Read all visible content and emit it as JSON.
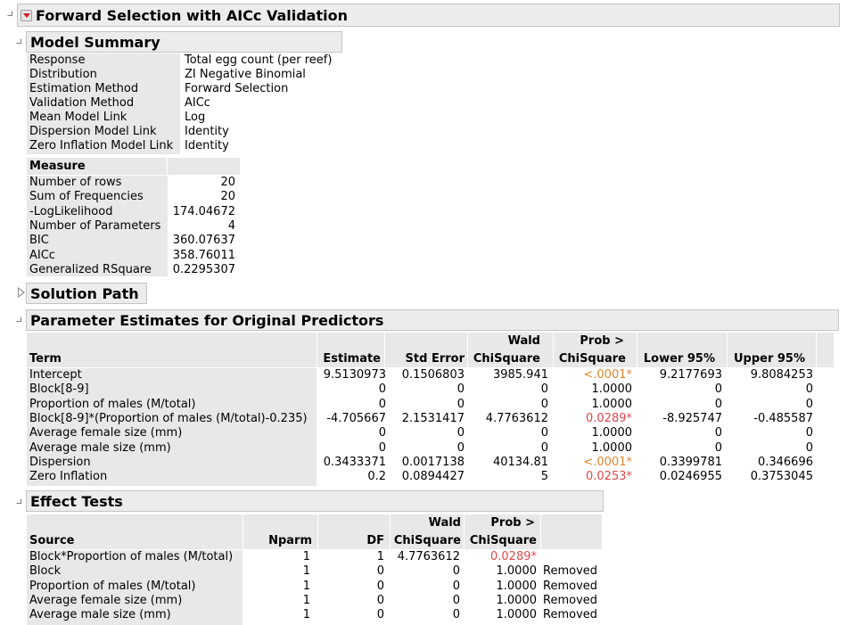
{
  "report": {
    "title": "Forward Selection with AICc Validation"
  },
  "model_summary": {
    "title": "Model Summary",
    "rows": [
      {
        "label": "Response",
        "value": "Total egg count (per reef)"
      },
      {
        "label": "Distribution",
        "value": "ZI Negative Binomial"
      },
      {
        "label": "Estimation Method",
        "value": "Forward Selection"
      },
      {
        "label": "Validation Method",
        "value": "AICc"
      },
      {
        "label": "Mean Model Link",
        "value": "Log"
      },
      {
        "label": "Dispersion Model Link",
        "value": "Identity"
      },
      {
        "label": "Zero Inflation Model Link",
        "value": "Identity"
      }
    ],
    "measure_header": "Measure",
    "measures": [
      {
        "label": "Number of rows",
        "value": "20"
      },
      {
        "label": "Sum of Frequencies",
        "value": "20"
      },
      {
        "label": "-LogLikelihood",
        "value": "174.04672"
      },
      {
        "label": "Number of Parameters",
        "value": "4"
      },
      {
        "label": "BIC",
        "value": "360.07637"
      },
      {
        "label": "AICc",
        "value": "358.76011"
      },
      {
        "label": "Generalized RSquare",
        "value": "0.2295307"
      }
    ]
  },
  "solution_path": {
    "title": "Solution Path"
  },
  "parameter_estimates": {
    "title": "Parameter Estimates for Original Predictors",
    "headers": {
      "term": "Term",
      "estimate": "Estimate",
      "std_error": "Std Error",
      "wald_line1": "Wald",
      "wald_line2": "ChiSquare",
      "prob_line1": "Prob >",
      "prob_line2": "ChiSquare",
      "lower": "Lower 95%",
      "upper": "Upper 95%"
    },
    "rows": [
      {
        "term": "Intercept",
        "estimate": "9.5130973",
        "std_error": "0.1506803",
        "wald": "3985.941",
        "prob": "<.0001*",
        "prob_color": "orange",
        "lower": "9.2177693",
        "upper": "9.8084253"
      },
      {
        "term": "Block[8-9]",
        "estimate": "0",
        "std_error": "0",
        "wald": "0",
        "prob": "1.0000",
        "prob_color": "",
        "lower": "0",
        "upper": "0"
      },
      {
        "term": "Proportion of males (M/total)",
        "estimate": "0",
        "std_error": "0",
        "wald": "0",
        "prob": "1.0000",
        "prob_color": "",
        "lower": "0",
        "upper": "0"
      },
      {
        "term": "Block[8-9]*(Proportion of males (M/total)-0.235)",
        "estimate": "-4.705667",
        "std_error": "2.1531417",
        "wald": "4.7763612",
        "prob": "0.0289*",
        "prob_color": "red",
        "lower": "-8.925747",
        "upper": "-0.485587"
      },
      {
        "term": "Average female size (mm)",
        "estimate": "0",
        "std_error": "0",
        "wald": "0",
        "prob": "1.0000",
        "prob_color": "",
        "lower": "0",
        "upper": "0"
      },
      {
        "term": "Average male size (mm)",
        "estimate": "0",
        "std_error": "0",
        "wald": "0",
        "prob": "1.0000",
        "prob_color": "",
        "lower": "0",
        "upper": "0"
      },
      {
        "term": "Dispersion",
        "estimate": "0.3433371",
        "std_error": "0.0017138",
        "wald": "40134.81",
        "prob": "<.0001*",
        "prob_color": "orange",
        "lower": "0.3399781",
        "upper": "0.346696"
      },
      {
        "term": "Zero Inflation",
        "estimate": "0.2",
        "std_error": "0.0894427",
        "wald": "5",
        "prob": "0.0253*",
        "prob_color": "red",
        "lower": "0.0246955",
        "upper": "0.3753045"
      }
    ]
  },
  "effect_tests": {
    "title": "Effect Tests",
    "headers": {
      "source": "Source",
      "nparm": "Nparm",
      "df": "DF",
      "wald_line1": "Wald",
      "wald_line2": "ChiSquare",
      "prob_line1": "Prob >",
      "prob_line2": "ChiSquare"
    },
    "rows": [
      {
        "source": "Block*Proportion of males (M/total)",
        "nparm": "1",
        "df": "1",
        "wald": "4.7763612",
        "prob": "0.0289*",
        "prob_color": "red",
        "note": ""
      },
      {
        "source": "Block",
        "nparm": "1",
        "df": "0",
        "wald": "0",
        "prob": "1.0000",
        "prob_color": "",
        "note": "Removed"
      },
      {
        "source": "Proportion of males (M/total)",
        "nparm": "1",
        "df": "0",
        "wald": "0",
        "prob": "1.0000",
        "prob_color": "",
        "note": "Removed"
      },
      {
        "source": "Average female size (mm)",
        "nparm": "1",
        "df": "0",
        "wald": "0",
        "prob": "1.0000",
        "prob_color": "",
        "note": "Removed"
      },
      {
        "source": "Average male size (mm)",
        "nparm": "1",
        "df": "0",
        "wald": "0",
        "prob": "1.0000",
        "prob_color": "",
        "note": "Removed"
      }
    ]
  }
}
